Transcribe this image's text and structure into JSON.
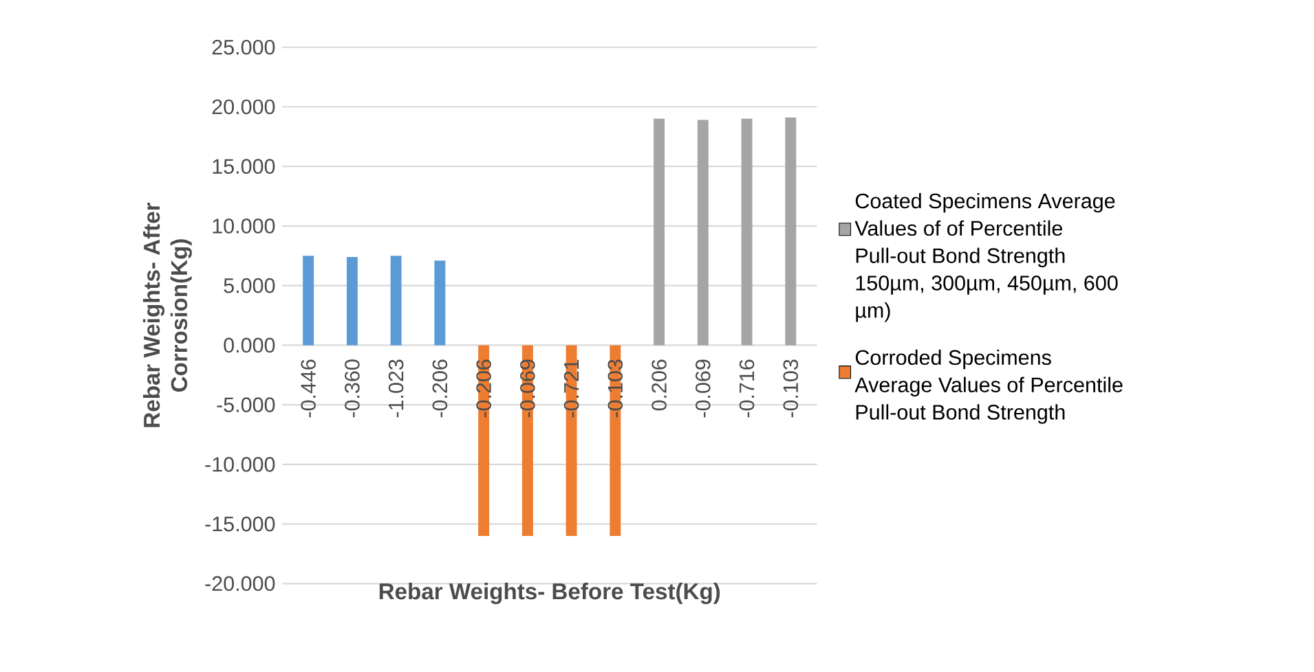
{
  "chart_data": {
    "type": "bar",
    "xlabel": "Rebar Weights- Before Test(Kg)",
    "ylabel": "Rebar Weights- After Corrosion(Kg)",
    "categories": [
      "-0.446",
      "-0.360",
      "-1.023",
      "-0.206",
      "-0.206",
      "-0.069",
      "-0.721",
      "-0.103",
      "0.206",
      "-0.069",
      "-0.716",
      "-0.103"
    ],
    "series": [
      {
        "color": "#5b9bd5",
        "values": [
          7.5,
          7.4,
          7.5,
          7.1,
          null,
          null,
          null,
          null,
          null,
          null,
          null,
          null
        ]
      },
      {
        "name": "Corroded Specimens Average Values of  Percentile Pull-out Bond Strength",
        "color": "#ed7d31",
        "values": [
          null,
          null,
          null,
          null,
          -16.0,
          -16.0,
          -16.0,
          -16.0,
          null,
          null,
          null,
          null
        ]
      },
      {
        "name": "Coated Specimens Average Values of of  Percentile Pull-out Bond Strength 150µm, 300µm, 450µm, 600 µm)",
        "color": "#a5a5a5",
        "values": [
          null,
          null,
          null,
          null,
          null,
          null,
          null,
          null,
          19.0,
          18.9,
          19.0,
          19.1
        ]
      }
    ],
    "ylim": [
      -20,
      25
    ],
    "yticks": [
      {
        "value": -20,
        "label": "-20.000"
      },
      {
        "value": -15,
        "label": "-15.000"
      },
      {
        "value": -10,
        "label": "-10.000"
      },
      {
        "value": -5,
        "label": "-5.000"
      },
      {
        "value": 0,
        "label": "0.000"
      },
      {
        "value": 5,
        "label": "5.000"
      },
      {
        "value": 10,
        "label": "10.000"
      },
      {
        "value": 15,
        "label": "15.000"
      },
      {
        "value": 20,
        "label": "20.000"
      },
      {
        "value": 25,
        "label": "25.000"
      }
    ],
    "grid": "y",
    "legend": "right"
  }
}
